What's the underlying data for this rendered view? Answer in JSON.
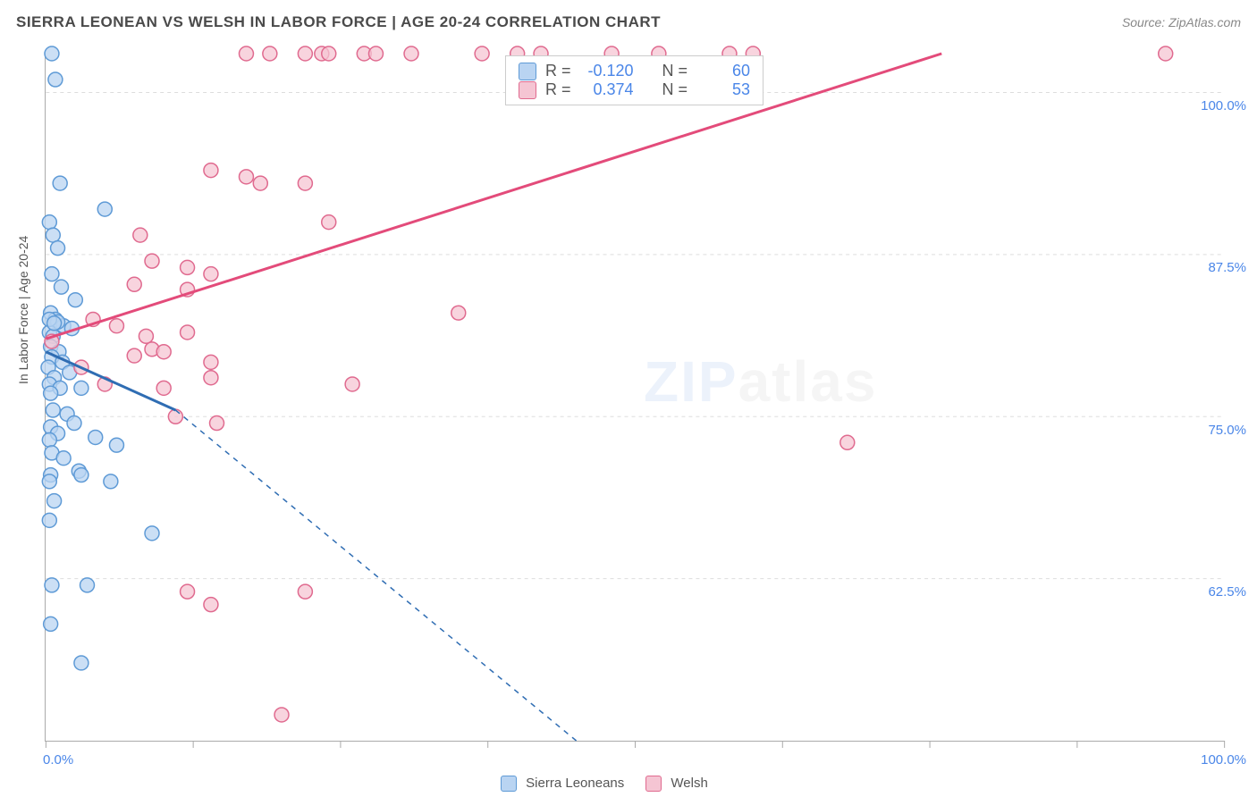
{
  "header": {
    "title": "SIERRA LEONEAN VS WELSH IN LABOR FORCE | AGE 20-24 CORRELATION CHART",
    "source": "Source: ZipAtlas.com"
  },
  "chart": {
    "type": "scatter",
    "ylabel": "In Labor Force | Age 20-24",
    "xlim": [
      0,
      100
    ],
    "ylim": [
      50,
      103
    ],
    "x_ticks": [
      0,
      12.5,
      25,
      37.5,
      50,
      62.5,
      75,
      87.5,
      100
    ],
    "y_gridlines": [
      62.5,
      75,
      87.5,
      100
    ],
    "y_tick_labels": [
      "62.5%",
      "75.0%",
      "87.5%",
      "100.0%"
    ],
    "x_axis_label_left": "0.0%",
    "x_axis_label_right": "100.0%",
    "background_color": "#ffffff",
    "grid_color": "#dddddd",
    "axis_color": "#aaaaaa",
    "series": [
      {
        "name": "Sierra Leoneans",
        "r": "-0.120",
        "n": "60",
        "marker_fill": "#b9d4f2",
        "marker_stroke": "#5e9ad6",
        "marker_radius": 8,
        "line_color": "#2f6db3",
        "line_solid": {
          "x1": 0,
          "y1": 80,
          "x2": 11,
          "y2": 75.5
        },
        "line_dashed": {
          "x1": 11,
          "y1": 75.5,
          "x2": 45,
          "y2": 50
        },
        "points": [
          [
            0.5,
            103
          ],
          [
            0.8,
            101
          ],
          [
            1.2,
            93
          ],
          [
            0.3,
            90
          ],
          [
            0.6,
            89
          ],
          [
            1.0,
            88
          ],
          [
            5,
            91
          ],
          [
            0.5,
            86
          ],
          [
            1.3,
            85
          ],
          [
            0.4,
            83
          ],
          [
            2.5,
            84
          ],
          [
            0.8,
            82.5
          ],
          [
            1.5,
            82
          ],
          [
            1.0,
            82.3
          ],
          [
            0.3,
            81.5
          ],
          [
            0.6,
            81.2
          ],
          [
            2.2,
            81.8
          ],
          [
            0.4,
            80.4
          ],
          [
            1.1,
            80.0
          ],
          [
            0.5,
            79.6
          ],
          [
            1.4,
            79.2
          ],
          [
            0.2,
            78.8
          ],
          [
            2.0,
            78.4
          ],
          [
            0.7,
            78.0
          ],
          [
            0.3,
            77.5
          ],
          [
            1.2,
            77.2
          ],
          [
            0.4,
            76.8
          ],
          [
            3.0,
            77.2
          ],
          [
            0.6,
            75.5
          ],
          [
            1.8,
            75.2
          ],
          [
            2.4,
            74.5
          ],
          [
            0.4,
            74.2
          ],
          [
            1.0,
            73.7
          ],
          [
            4.2,
            73.4
          ],
          [
            0.3,
            73.2
          ],
          [
            6.0,
            72.8
          ],
          [
            0.5,
            72.2
          ],
          [
            1.5,
            71.8
          ],
          [
            2.8,
            70.8
          ],
          [
            0.4,
            70.5
          ],
          [
            3.0,
            70.5
          ],
          [
            5.5,
            70.0
          ],
          [
            0.3,
            70.0
          ],
          [
            0.7,
            68.5
          ],
          [
            0.3,
            67.0
          ],
          [
            9.0,
            66.0
          ],
          [
            0.5,
            62.0
          ],
          [
            3.5,
            62.0
          ],
          [
            0.4,
            59.0
          ],
          [
            3.0,
            56.0
          ],
          [
            0.3,
            82.5
          ],
          [
            0.7,
            82.2
          ]
        ]
      },
      {
        "name": "Welsh",
        "r": "0.374",
        "n": "53",
        "marker_fill": "#f5c5d3",
        "marker_stroke": "#e06a8f",
        "marker_radius": 8,
        "line_color": "#e34b7a",
        "line_solid": {
          "x1": 0,
          "y1": 81,
          "x2": 76,
          "y2": 103
        },
        "line_dashed": null,
        "points": [
          [
            17,
            103
          ],
          [
            19,
            103
          ],
          [
            22,
            103
          ],
          [
            23.4,
            103
          ],
          [
            24,
            103
          ],
          [
            27,
            103
          ],
          [
            28,
            103
          ],
          [
            31,
            103
          ],
          [
            37,
            103
          ],
          [
            40,
            103
          ],
          [
            42,
            103
          ],
          [
            48,
            103
          ],
          [
            52,
            103
          ],
          [
            58,
            103
          ],
          [
            60,
            103
          ],
          [
            95,
            103
          ],
          [
            14,
            94
          ],
          [
            17,
            93.5
          ],
          [
            18.2,
            93
          ],
          [
            22,
            93
          ],
          [
            24,
            90
          ],
          [
            8,
            89
          ],
          [
            9,
            87
          ],
          [
            12,
            86.5
          ],
          [
            14,
            86
          ],
          [
            7.5,
            85.2
          ],
          [
            12,
            84.8
          ],
          [
            35,
            83
          ],
          [
            4,
            82.5
          ],
          [
            6,
            82
          ],
          [
            8.5,
            81.2
          ],
          [
            12,
            81.5
          ],
          [
            0.5,
            80.8
          ],
          [
            9,
            80.2
          ],
          [
            7.5,
            79.7
          ],
          [
            10,
            80.0
          ],
          [
            14,
            79.2
          ],
          [
            3,
            78.8
          ],
          [
            14,
            78.0
          ],
          [
            5,
            77.5
          ],
          [
            10,
            77.2
          ],
          [
            26,
            77.5
          ],
          [
            11,
            75.0
          ],
          [
            14.5,
            74.5
          ],
          [
            68,
            73.0
          ],
          [
            12,
            61.5
          ],
          [
            14,
            60.5
          ],
          [
            22,
            61.5
          ],
          [
            20,
            52.0
          ]
        ]
      }
    ],
    "watermark": "ZIPatlas",
    "stats_label_r": "R =",
    "stats_label_n": "N ="
  }
}
